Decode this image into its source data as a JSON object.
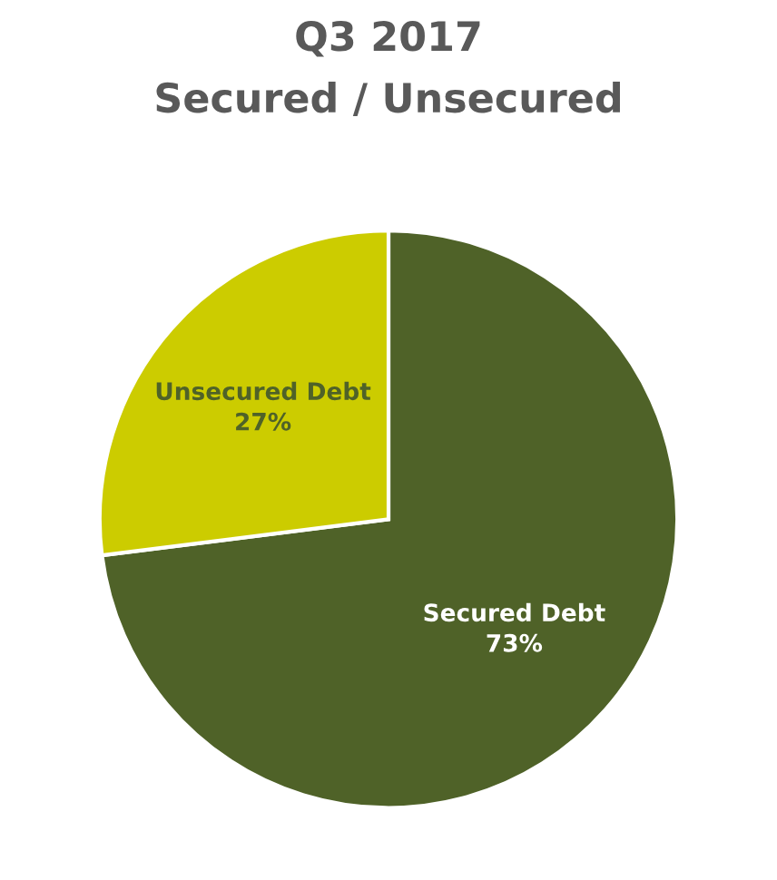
{
  "chart_data": {
    "type": "pie",
    "title": "Q3 2017",
    "subtitle": "Secured / Unsecured",
    "categories": [
      "Secured Debt",
      "Unsecured Debt"
    ],
    "values": [
      73,
      27
    ],
    "colors": [
      "#4f6228",
      "#cccc00"
    ],
    "value_labels": [
      "73%",
      "27%"
    ],
    "legend": false
  }
}
